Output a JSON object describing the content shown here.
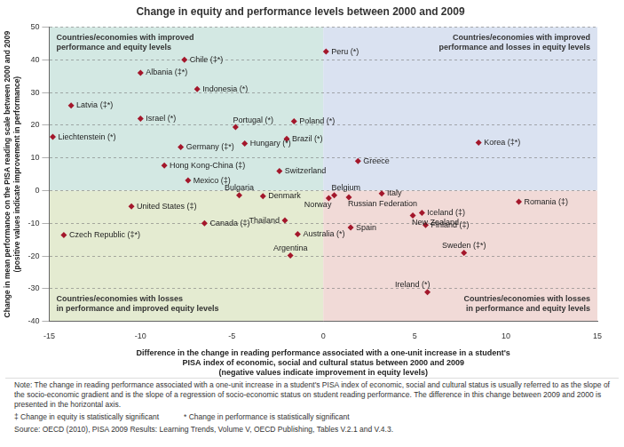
{
  "chart_data": {
    "type": "scatter",
    "title": "Change in equity and performance levels between 2000 and 2009",
    "x_label": [
      "Difference in the change in reading performance associated with a one-unit increase in a student's",
      "PISA index of economic, social and cultural status between 2000 and 2009",
      "(negative values indicate improvement in equity levels)"
    ],
    "y_label": [
      "Change in mean performance on the PISA reading scale between 2000 and 2009",
      "(positive values indicate improvement in performance)"
    ],
    "point_labels": [
      "Peru (*)",
      "Chile (‡*)",
      "Albania (‡*)",
      "Indonesia (*)",
      "Latvia (‡*)",
      "Israel (*)",
      "Portugal (*)",
      "Poland (*)",
      "Liechtenstein (*)",
      "Germany (‡*)",
      "Hungary (*)",
      "Brazil (*)",
      "Korea (‡*)",
      "Hong Kong-China (‡)",
      "Switzerland",
      "Greece",
      "Mexico (‡)",
      "Bulgaria",
      "Denmark",
      "Belgium",
      "Norway",
      "Russian Federation",
      "Italy",
      "Iceland (‡)",
      "New Zealand",
      "Finland (‡)",
      "Romania (‡)",
      "Sweden (‡*)",
      "Ireland (*)",
      "United States (‡)",
      "Canada (‡)",
      "Czech Republic (‡*)",
      "Thailand",
      "Australia (*)",
      "Spain",
      "Argentina"
    ],
    "x": [
      0.15,
      -7.6,
      -10.0,
      -6.9,
      -13.8,
      -10.0,
      -4.8,
      -1.6,
      -14.8,
      -7.8,
      -4.3,
      -2.0,
      8.5,
      -8.7,
      -2.4,
      1.9,
      -7.4,
      -4.6,
      -3.3,
      0.6,
      0.3,
      1.4,
      3.2,
      5.4,
      4.9,
      5.6,
      10.7,
      7.7,
      5.7,
      -10.5,
      -6.5,
      -14.2,
      -2.1,
      -1.4,
      1.5,
      -1.8
    ],
    "values": [
      42.5,
      40,
      36,
      31,
      26,
      22,
      19.4,
      21.2,
      16.4,
      13.3,
      14.4,
      15.8,
      14.7,
      7.7,
      6,
      9,
      3.1,
      -1.4,
      -1.7,
      -1.4,
      -2.3,
      -2,
      -0.9,
      -6.8,
      -7.6,
      -10.5,
      -3.4,
      -19,
      -31,
      -4.8,
      -10,
      -13.6,
      -9.1,
      -13.3,
      -11.3,
      -19.8
    ],
    "color": "#a3172b",
    "marker": "diamond",
    "xlim": [
      -15,
      15
    ],
    "xticks": [
      -15,
      -10,
      -5,
      0,
      5,
      10,
      15
    ],
    "ylim": [
      -40,
      50
    ],
    "yticks": [
      -40,
      -30,
      -20,
      -10,
      0,
      10,
      20,
      30,
      40,
      50
    ],
    "grid": true,
    "quadrants": [
      {
        "text": [
          "Countries/economies with improved",
          "performance and equity levels"
        ],
        "color": "#d3e8e3"
      },
      {
        "text": [
          "Countries/economies with improved",
          "performance and losses in equity levels"
        ],
        "color": "#dae2f1"
      },
      {
        "text": [
          "Countries/economies with losses",
          "in performance and improved equity levels"
        ],
        "color": "#e4ebd1"
      },
      {
        "text": [
          "Countries/economies with losses",
          "in performance and equity levels"
        ],
        "color": "#f1dad7"
      }
    ],
    "notes": [
      "Note: The change in reading performance associated with a one-unit increase in a student's PISA index of economic, social and cultural status is usually referred to as the slope of the socio-economic gradient and is the slope of a regression of socio-economic status on student reading performance. The difference in this change between 2009 and 2000 is presented in the horizontal axis.",
      [
        "‡ Change in equity is statistically significant",
        "* Change in performance is statistically significant"
      ],
      "Source: OECD (2010), PISA 2009 Results: Learning Trends, Volume V, OECD Publishing, Tables V.2.1 and V.4.3."
    ]
  }
}
